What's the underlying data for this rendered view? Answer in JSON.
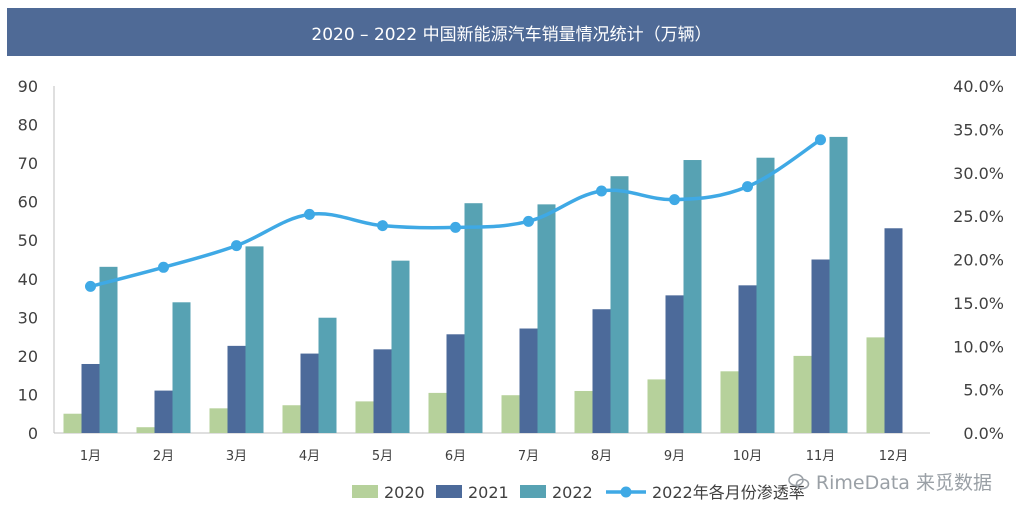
{
  "title": "2020 – 2022 中国新能源汽车销量情况统计（万辆）",
  "watermark": "RimeData 来觅数据",
  "chart_data": {
    "type": "bar",
    "categories": [
      "1月",
      "2月",
      "3月",
      "4月",
      "5月",
      "6月",
      "7月",
      "8月",
      "9月",
      "10月",
      "11月",
      "12月"
    ],
    "series": [
      {
        "name": "2020",
        "type": "bar",
        "axis": "left",
        "color": "#b6d19b",
        "values": [
          5.0,
          1.5,
          6.4,
          7.2,
          8.2,
          10.4,
          9.8,
          10.9,
          13.9,
          16.0,
          20.0,
          24.8
        ]
      },
      {
        "name": "2021",
        "type": "bar",
        "axis": "left",
        "color": "#4c6a9a",
        "values": [
          17.9,
          11.0,
          22.6,
          20.6,
          21.7,
          25.6,
          27.1,
          32.1,
          35.7,
          38.3,
          45.0,
          53.1
        ]
      },
      {
        "name": "2022",
        "type": "bar",
        "axis": "left",
        "color": "#57a2b3",
        "values": [
          43.1,
          33.9,
          48.4,
          29.9,
          44.7,
          59.6,
          59.3,
          66.6,
          70.8,
          71.4,
          76.8,
          null
        ]
      },
      {
        "name": "2022年各月份渗透率",
        "type": "line",
        "axis": "right",
        "color": "#3fa9e5",
        "values": [
          16.9,
          19.1,
          21.6,
          25.2,
          23.9,
          23.7,
          24.4,
          27.9,
          26.9,
          28.4,
          33.8,
          null
        ]
      }
    ],
    "ylim_left": [
      0,
      90
    ],
    "yticks_left": [
      "0",
      "10",
      "20",
      "30",
      "40",
      "50",
      "60",
      "70",
      "80",
      "90"
    ],
    "ylim_right": [
      0,
      40
    ],
    "yticks_right": [
      "0.0%",
      "5.0%",
      "10.0%",
      "15.0%",
      "20.0%",
      "25.0%",
      "30.0%",
      "35.0%",
      "40.0%"
    ],
    "grid": false,
    "legend_position": "bottom"
  }
}
